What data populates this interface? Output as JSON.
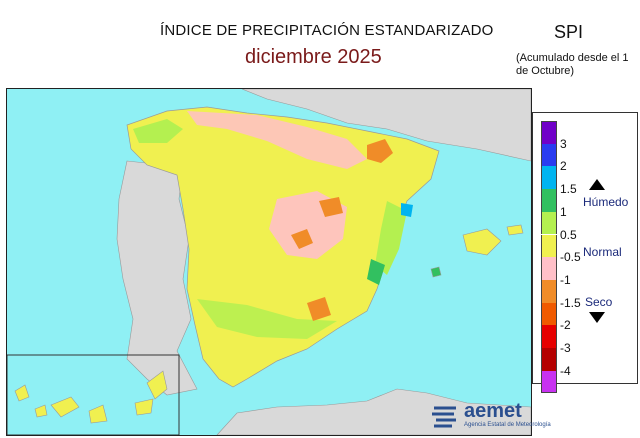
{
  "header": {
    "title": "ÍNDICE DE PRECIPITACIÓN ESTANDARIZADO",
    "period": "diciembre  2025",
    "index_name": "SPI",
    "note": "(Acumulado desde el 1 de Octubre)"
  },
  "legend": {
    "colors": [
      "#7000c8",
      "#2a3cf0",
      "#00b4f0",
      "#32c060",
      "#b4f050",
      "#f0f050",
      "#ffc0c8",
      "#f08c28",
      "#f05a00",
      "#e60000",
      "#b40000",
      "#c832f0"
    ],
    "ticks": [
      "3",
      "2",
      "1.5",
      "1",
      "0.5",
      "-0.5",
      "-1",
      "-1.5",
      "-2",
      "-3",
      "-4"
    ],
    "humid_label": "Húmedo",
    "normal_label": "Normal",
    "dry_label": "Seco"
  },
  "logo": {
    "name": "aemet",
    "subtitle": "Agencia Estatal de Meteorología"
  }
}
